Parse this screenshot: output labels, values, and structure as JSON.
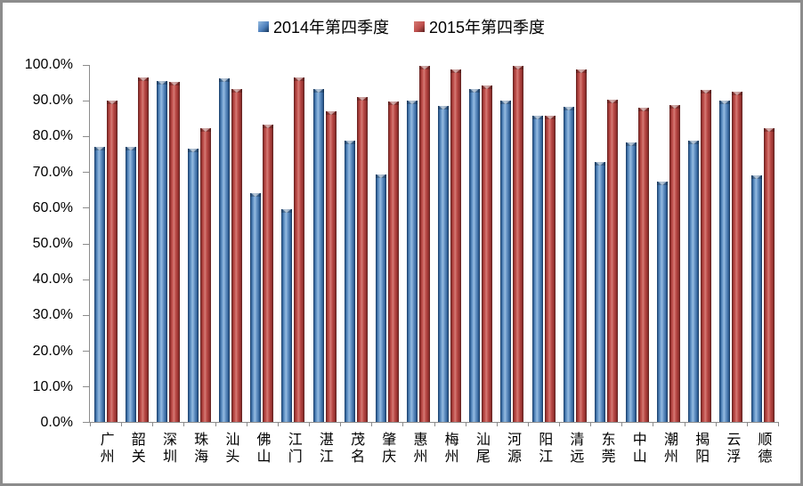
{
  "legend": {
    "items": [
      {
        "label": "2014年第四季度",
        "series": "s0",
        "color": "#4F81BD"
      },
      {
        "label": "2015年第四季度",
        "series": "s1",
        "color": "#C0504D"
      }
    ]
  },
  "colors": {
    "series_2014": "#4F81BD",
    "series_2015": "#C0504D",
    "axis": "#8C8C8C",
    "frame_border": "#8C8C8C",
    "text": "#000000",
    "background": "#FFFFFF"
  },
  "chart_data": {
    "type": "bar",
    "title": "",
    "xlabel": "",
    "ylabel": "",
    "categories": [
      "广州",
      "韶关",
      "深圳",
      "珠海",
      "汕头",
      "佛山",
      "江门",
      "湛江",
      "茂名",
      "肇庆",
      "惠州",
      "梅州",
      "汕尾",
      "河源",
      "阳江",
      "清远",
      "东莞",
      "中山",
      "潮州",
      "揭阳",
      "云浮",
      "顺德"
    ],
    "series": [
      {
        "name": "2014年第四季度",
        "color": "#4F81BD",
        "values": [
          77.0,
          77.0,
          95.5,
          76.5,
          96.3,
          64.0,
          59.7,
          93.2,
          78.9,
          69.3,
          90.0,
          88.5,
          93.3,
          90.1,
          85.7,
          88.3,
          72.7,
          78.2,
          67.3,
          78.8,
          90.1,
          69.1
        ]
      },
      {
        "name": "2015年第四季度",
        "color": "#C0504D",
        "values": [
          90.1,
          96.5,
          95.2,
          82.4,
          93.2,
          83.2,
          96.5,
          87.1,
          91.0,
          89.8,
          99.8,
          98.7,
          94.3,
          99.8,
          85.8,
          98.8,
          90.2,
          88.0,
          88.9,
          92.9,
          92.5,
          82.4
        ]
      }
    ],
    "ylim": [
      0,
      100
    ],
    "ytick_step": 10,
    "ytick_labels": [
      "0.0%",
      "10.0%",
      "20.0%",
      "30.0%",
      "40.0%",
      "50.0%",
      "60.0%",
      "70.0%",
      "80.0%",
      "90.0%",
      "100.0%"
    ],
    "legend_position": "top-center",
    "grid": false
  }
}
